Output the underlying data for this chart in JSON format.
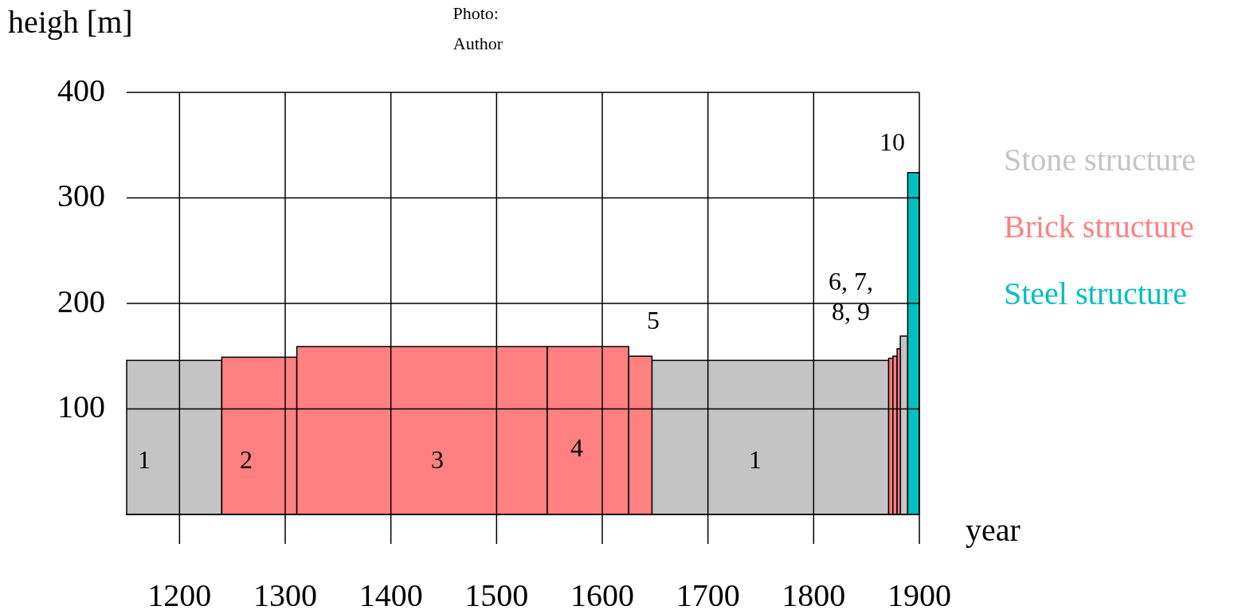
{
  "chart_data": {
    "type": "histogram",
    "ylabel": "heigh [m]",
    "xlabel": "year",
    "annotations": [
      "Photo:  Author",
      "1",
      "2",
      "3",
      "4",
      "5",
      "1",
      "6, 7, 8, 9",
      "10"
    ],
    "bins": [
      1150,
      1240,
      1311,
      1548,
      1625,
      1647,
      1871,
      1875,
      1879,
      1882,
      1889,
      1900
    ],
    "series": [
      {
        "name": "Stone structure",
        "color": "#c4c4c4",
        "values": [
          146,
          null,
          null,
          null,
          null,
          146,
          null,
          null,
          null,
          169,
          null
        ]
      },
      {
        "name": "Brick structure",
        "color": "#ff8080",
        "values": [
          null,
          149,
          159,
          159,
          150,
          null,
          148,
          150,
          157,
          null,
          null
        ]
      },
      {
        "name": "Steel structure",
        "color": "#00c0c0",
        "values": [
          null,
          null,
          null,
          null,
          null,
          null,
          null,
          null,
          null,
          null,
          324
        ]
      }
    ],
    "xlim": [
      1150,
      1900
    ],
    "xticks": [
      1200,
      1300,
      1400,
      1500,
      1600,
      1700,
      1800,
      1900
    ],
    "ylim": [
      0,
      400
    ],
    "yticks": [
      {
        "value": 0,
        "label": null
      },
      100,
      200,
      300,
      400
    ],
    "grid": true,
    "legend": "right"
  }
}
